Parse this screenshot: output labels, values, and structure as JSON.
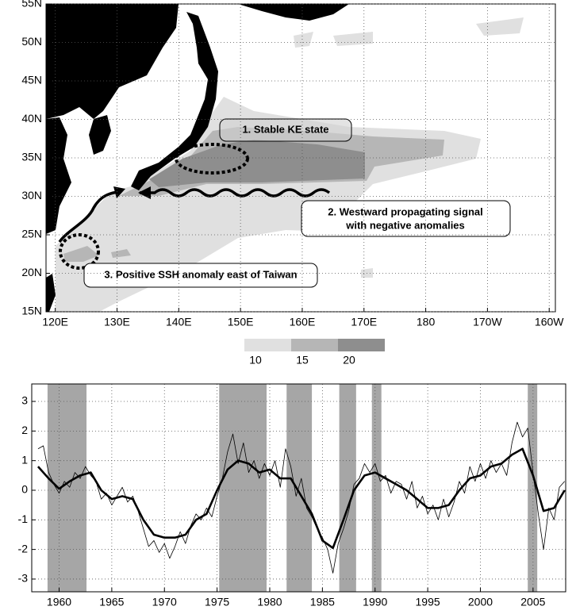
{
  "chart_data": [
    {
      "type": "map",
      "xlim": [
        118.5,
        201
      ],
      "ylim": [
        15,
        55
      ],
      "xticks": [
        {
          "value": 120,
          "label": "120E"
        },
        {
          "value": 130,
          "label": "130E"
        },
        {
          "value": 140,
          "label": "140E"
        },
        {
          "value": 150,
          "label": "150E"
        },
        {
          "value": 160,
          "label": "160E"
        },
        {
          "value": 170,
          "label": "170E"
        },
        180,
        {
          "value": 190,
          "label": "170W"
        },
        {
          "value": 200,
          "label": "160W"
        }
      ],
      "yticks": [
        {
          "value": 15,
          "label": "15N"
        },
        {
          "value": 20,
          "label": "20N"
        },
        {
          "value": 25,
          "label": "25N"
        },
        {
          "value": 30,
          "label": "30N"
        },
        {
          "value": 35,
          "label": "35N"
        },
        {
          "value": 40,
          "label": "40N"
        },
        {
          "value": 45,
          "label": "45N"
        },
        {
          "value": 50,
          "label": "50N"
        },
        {
          "value": 55,
          "label": "55N"
        }
      ],
      "grid": true,
      "annotations": [
        "1. Stable KE state",
        "2. Westward propagating signal",
        "with negative anomalies",
        "3. Positive SSH anomaly east of Taiwan"
      ],
      "colorbar": {
        "levels": [
          10,
          15,
          20
        ],
        "colors": [
          "#e0e0e0",
          "#b6b6b6",
          "#8e8e8e"
        ]
      }
    },
    {
      "type": "line",
      "xlim": [
        1957.4,
        2008.1
      ],
      "ylim": [
        -3.43,
        3.59
      ],
      "xticks": [
        1960,
        1965,
        1970,
        1975,
        1980,
        1985,
        1990,
        1995,
        2000,
        2005
      ],
      "yticks": [
        -3,
        -2,
        -1,
        0,
        1,
        2,
        3
      ],
      "grid": true,
      "periods": [
        [
          1958.9,
          1962.6
        ],
        [
          1975.2,
          1979.7
        ],
        [
          1981.6,
          1984.0
        ],
        [
          1986.6,
          1988.2
        ],
        [
          1989.7,
          1990.6
        ],
        [
          2004.5,
          2005.4
        ]
      ],
      "period_color": "#a6a6a6",
      "series": [
        {
          "color": "#000000",
          "width": 0.8,
          "x": [
            1958,
            1958.5,
            1959,
            1959.5,
            1960,
            1960.5,
            1961,
            1961.5,
            1962,
            1962.5,
            1963,
            1963.5,
            1964,
            1964.5,
            1965,
            1965.5,
            1966,
            1966.5,
            1967,
            1967.5,
            1968,
            1968.5,
            1969,
            1969.5,
            1970,
            1970.5,
            1971,
            1971.5,
            1972,
            1972.5,
            1973,
            1973.5,
            1974,
            1974.5,
            1975,
            1975.5,
            1976,
            1976.5,
            1977,
            1977.5,
            1978,
            1978.5,
            1979,
            1979.5,
            1980,
            1980.5,
            1981,
            1981.5,
            1982,
            1982.5,
            1983,
            1983.5,
            1984,
            1984.5,
            1985,
            1985.5,
            1986,
            1986.5,
            1987,
            1987.5,
            1988,
            1988.5,
            1989,
            1989.5,
            1990,
            1990.5,
            1991,
            1991.5,
            1992,
            1992.5,
            1993,
            1993.5,
            1994,
            1994.5,
            1995,
            1995.5,
            1996,
            1996.5,
            1997,
            1997.5,
            1998,
            1998.5,
            1999,
            1999.5,
            2000,
            2000.5,
            2001,
            2001.5,
            2002,
            2002.5,
            2003,
            2003.5,
            2004,
            2004.5,
            2005,
            2005.5,
            2006,
            2006.5,
            2007,
            2007.5,
            2008
          ],
          "values": [
            1.4,
            1.5,
            0.6,
            0.2,
            -0.1,
            0.3,
            0.1,
            0.6,
            0.4,
            0.8,
            0.5,
            0.3,
            -0.3,
            -0.1,
            -0.5,
            -0.2,
            0.1,
            -0.4,
            -0.2,
            -0.7,
            -1.3,
            -1.9,
            -1.7,
            -2.1,
            -1.8,
            -2.3,
            -1.9,
            -1.4,
            -1.8,
            -1.2,
            -0.8,
            -1.0,
            -0.6,
            -0.9,
            -0.2,
            0.4,
            1.3,
            1.9,
            0.9,
            1.6,
            0.6,
            1.0,
            0.4,
            0.9,
            0.5,
            1.0,
            0.1,
            1.4,
            0.8,
            -0.2,
            0.4,
            -0.6,
            -0.9,
            -1.3,
            -1.6,
            -2.0,
            -2.8,
            -1.8,
            -1.3,
            -0.7,
            0.2,
            0.4,
            0.9,
            0.6,
            0.9,
            0.3,
            0.5,
            -0.1,
            0.3,
            0.2,
            -0.3,
            0.3,
            -0.6,
            -0.2,
            -0.8,
            -0.5,
            -1.0,
            -0.3,
            -0.9,
            -0.4,
            0.3,
            -0.1,
            0.8,
            0.3,
            0.9,
            0.4,
            1.0,
            0.6,
            0.9,
            0.5,
            1.6,
            2.3,
            1.8,
            2.1,
            0.6,
            -0.8,
            -2.0,
            -0.6,
            -1.0,
            0.1,
            0.3
          ]
        },
        {
          "color": "#000000",
          "width": 2.6,
          "x": [
            1958,
            1959,
            1960,
            1961,
            1962,
            1963,
            1964,
            1965,
            1966,
            1967,
            1968,
            1969,
            1970,
            1971,
            1972,
            1973,
            1974,
            1975,
            1976,
            1977,
            1978,
            1979,
            1980,
            1981,
            1982,
            1983,
            1984,
            1985,
            1986,
            1987,
            1988,
            1989,
            1990,
            1991,
            1992,
            1993,
            1994,
            1995,
            1996,
            1997,
            1998,
            1999,
            2000,
            2001,
            2002,
            2003,
            2004,
            2005,
            2006,
            2007,
            2008
          ],
          "values": [
            0.8,
            0.4,
            0.05,
            0.3,
            0.5,
            0.6,
            0.0,
            -0.3,
            -0.2,
            -0.3,
            -1.0,
            -1.5,
            -1.6,
            -1.6,
            -1.5,
            -1.0,
            -0.8,
            0.0,
            0.7,
            1.0,
            0.9,
            0.6,
            0.7,
            0.4,
            0.4,
            -0.2,
            -0.8,
            -1.7,
            -1.95,
            -1.0,
            0.0,
            0.5,
            0.6,
            0.4,
            0.2,
            0.0,
            -0.3,
            -0.6,
            -0.6,
            -0.5,
            0.0,
            0.4,
            0.5,
            0.8,
            0.9,
            1.2,
            1.4,
            0.5,
            -0.7,
            -0.6,
            0.0
          ]
        }
      ]
    }
  ]
}
